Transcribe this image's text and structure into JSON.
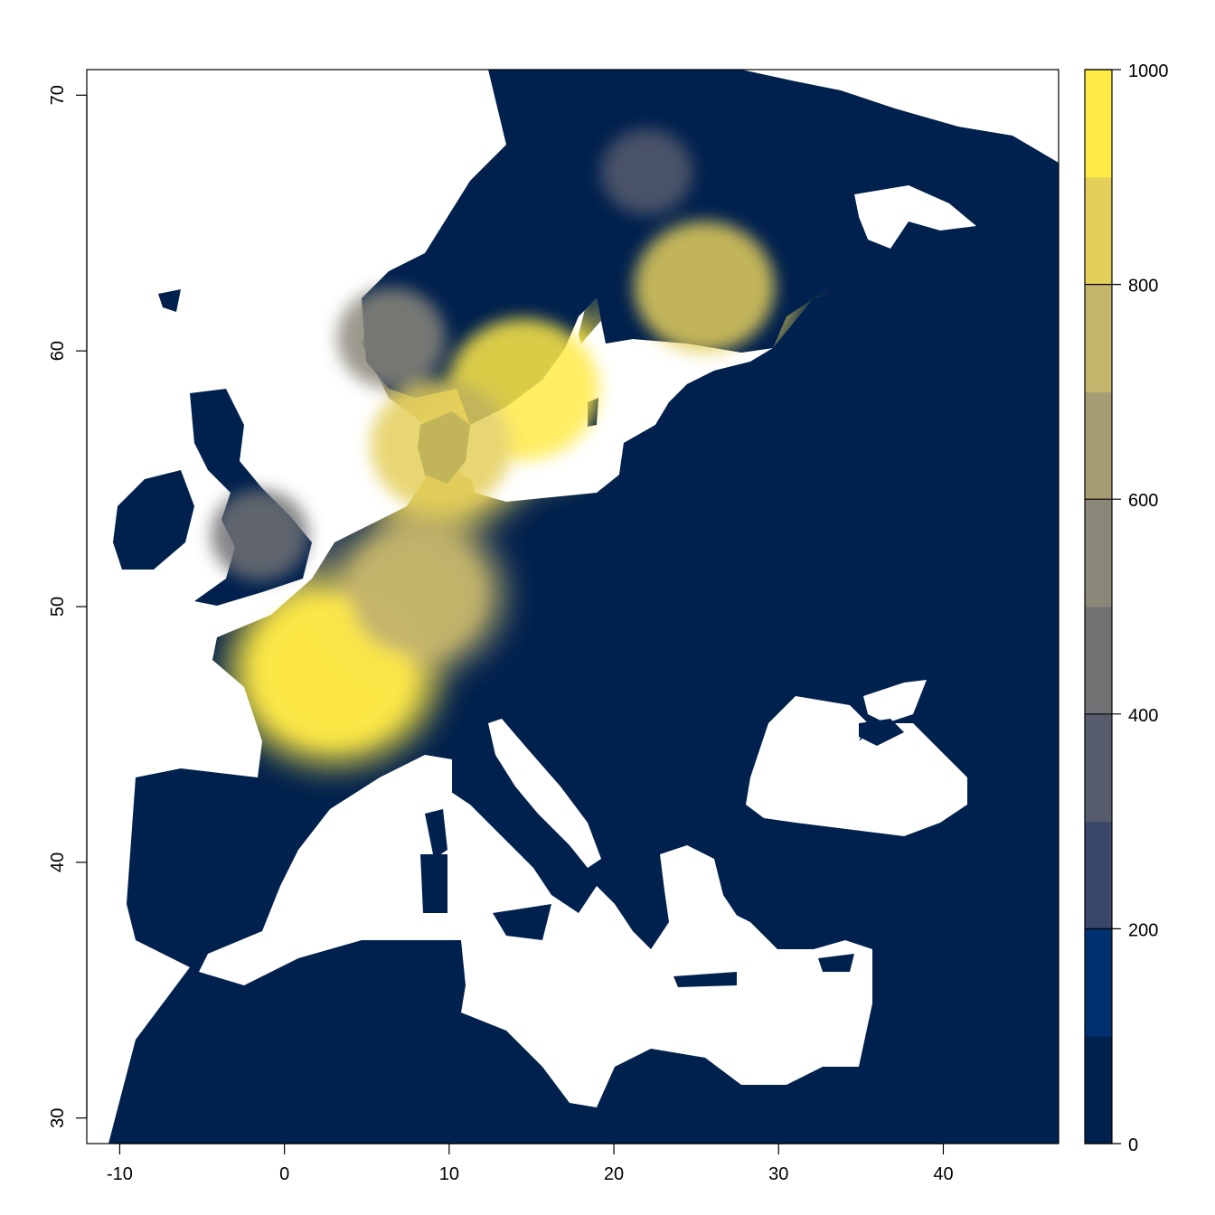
{
  "chart_data": {
    "type": "heatmap",
    "title": "",
    "xlabel": "",
    "ylabel": "",
    "xlim": [
      -12,
      47
    ],
    "ylim": [
      29,
      71
    ],
    "x_ticks": [
      -10,
      0,
      10,
      20,
      30,
      40
    ],
    "y_ticks": [
      30,
      40,
      50,
      60,
      70
    ],
    "legend": {
      "position": "right",
      "range": [
        0,
        1000
      ],
      "ticks": [
        0,
        200,
        400,
        600,
        800,
        1000
      ],
      "colors": [
        "#00204D",
        "#00306F",
        "#3A476B",
        "#575C6D",
        "#707173",
        "#8A8779",
        "#A69D75",
        "#C4B56C",
        "#E4CF5B",
        "#FFEA46"
      ]
    },
    "colors": {
      "background_low": "#00204D",
      "high": "#FFEA46",
      "water": "#FFFFFF"
    },
    "hotspots": [
      {
        "region": "France",
        "lon": 3,
        "lat": 47.5,
        "level": 950
      },
      {
        "region": "Southern Sweden",
        "lon": 14.5,
        "lat": 58.5,
        "level": 900
      },
      {
        "region": "Southern Finland",
        "lon": 25.5,
        "lat": 62.5,
        "level": 800
      },
      {
        "region": "Denmark",
        "lon": 9.5,
        "lat": 56.3,
        "level": 800
      },
      {
        "region": "Western Germany / Benelux",
        "lon": 8,
        "lat": 50.5,
        "level": 700
      },
      {
        "region": "Southern Norway coast",
        "lon": 6.5,
        "lat": 60.5,
        "level": 500
      },
      {
        "region": "England",
        "lon": -1.5,
        "lat": 52.8,
        "level": 400
      },
      {
        "region": "Northern Scandinavia",
        "lon": 22,
        "lat": 67,
        "level": 350
      }
    ]
  }
}
